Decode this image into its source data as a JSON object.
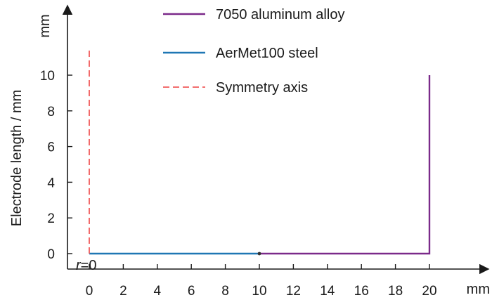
{
  "chart_data": {
    "type": "line",
    "xlabel": "",
    "ylabel": "Electrode length / mm",
    "x_unit": "mm",
    "y_unit": "mm",
    "xlim": [
      -1.5,
      23
    ],
    "ylim": [
      -1.1,
      13.5
    ],
    "x_ticks": [
      0,
      2,
      4,
      6,
      8,
      10,
      12,
      14,
      16,
      18,
      20
    ],
    "y_ticks": [
      0,
      2,
      4,
      6,
      8,
      10
    ],
    "grid": false,
    "legend_position": "top-center",
    "series": [
      {
        "name": "7050 aluminum alloy",
        "color": "#7b2a8a",
        "style": "solid",
        "x": [
          10,
          20,
          20
        ],
        "y": [
          0,
          0,
          10
        ]
      },
      {
        "name": "AerMet100 steel",
        "color": "#1f77b4",
        "style": "solid",
        "x": [
          0,
          10
        ],
        "y": [
          0,
          0
        ]
      },
      {
        "name": "Symmetry axis",
        "color": "#f05a5a",
        "style": "dashed",
        "x": [
          0,
          0
        ],
        "y": [
          0,
          11.5
        ]
      }
    ],
    "annotations": [
      {
        "text_italic": "r",
        "text": "=0",
        "x": 0,
        "y": 0
      }
    ]
  }
}
